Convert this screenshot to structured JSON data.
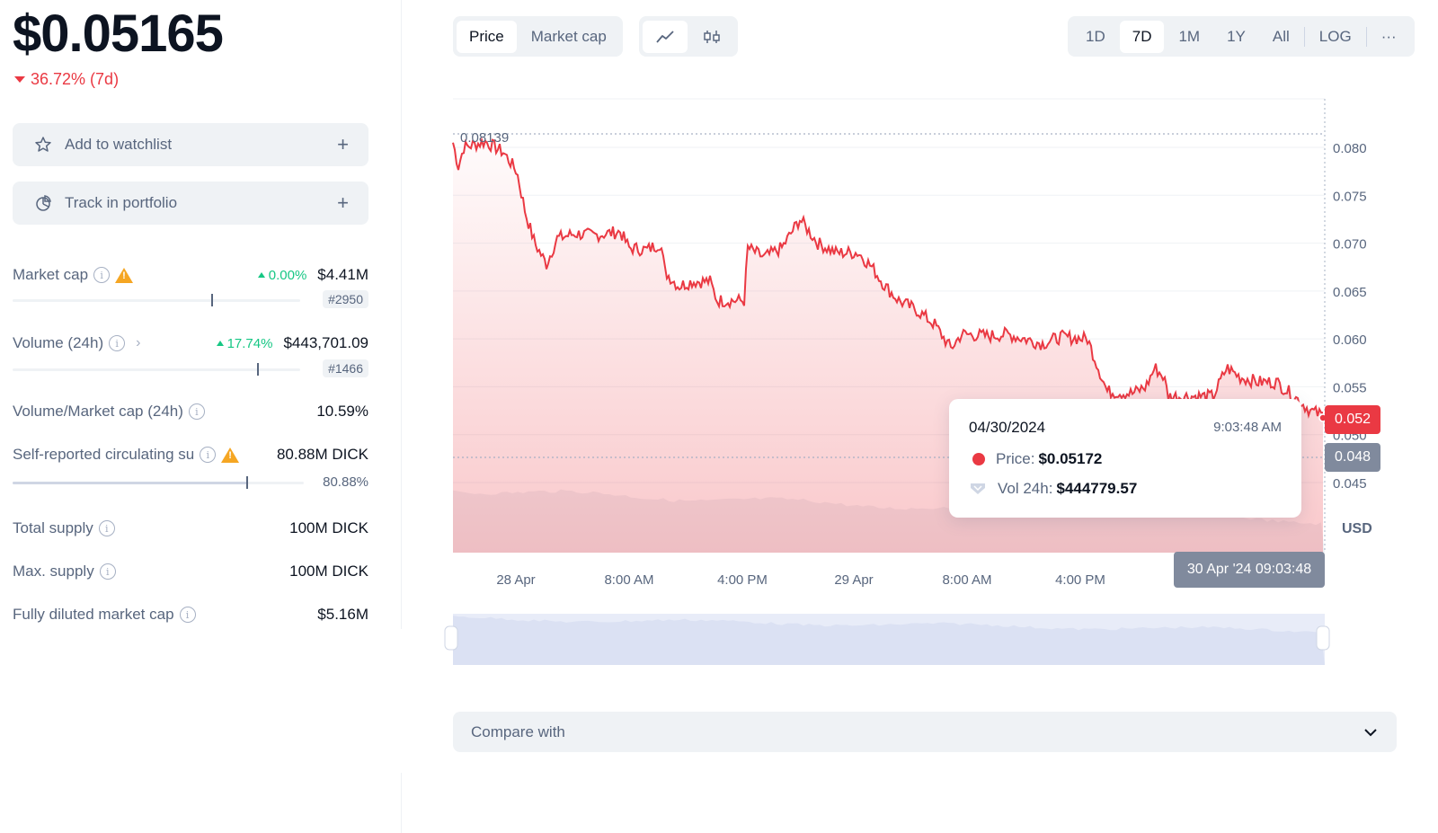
{
  "price": "$0.05165",
  "change_7d": "36.72% (7d)",
  "actions": {
    "watchlist": "Add to watchlist",
    "portfolio": "Track in portfolio",
    "plus": "+"
  },
  "stats": {
    "market_cap": {
      "label": "Market cap",
      "change": "0.00%",
      "value": "$4.41M",
      "rank": "#2950",
      "bar_fraction": 0.69
    },
    "volume": {
      "label": "Volume (24h)",
      "change": "17.74%",
      "value": "$443,701.09",
      "rank": "#1466",
      "bar_fraction": 0.85
    },
    "vol_mcap": {
      "label": "Volume/Market cap (24h)",
      "value": "10.59%"
    },
    "circulating": {
      "label": "Self-reported circulating su",
      "value": "80.88M DICK",
      "percent": "80.88%",
      "bar_fraction": 0.8088
    },
    "total_supply": {
      "label": "Total supply",
      "value": "100M DICK"
    },
    "max_supply": {
      "label": "Max. supply",
      "value": "100M DICK"
    },
    "fdmc": {
      "label": "Fully diluted market cap",
      "value": "$5.16M"
    }
  },
  "toolbar": {
    "chart_mode": [
      "Price",
      "Market cap"
    ],
    "active_mode": "Price",
    "ranges": [
      "1D",
      "7D",
      "1M",
      "1Y",
      "All",
      "LOG"
    ],
    "active_range": "7D",
    "more": "···"
  },
  "chart": {
    "high_label": "0.08139",
    "y_ticks": [
      "0.080",
      "0.075",
      "0.070",
      "0.065",
      "0.060",
      "0.055",
      "0.050",
      "0.045"
    ],
    "currency": "USD",
    "x_ticks": [
      "28 Apr",
      "8:00 AM",
      "4:00 PM",
      "29 Apr",
      "8:00 AM",
      "4:00 PM"
    ],
    "current_price_tag": "0.052",
    "low_price_tag": "0.048",
    "hover_time_tag": "30 Apr '24 09:03:48",
    "line_color": "#ea3943"
  },
  "tooltip": {
    "date": "04/30/2024",
    "time": "9:03:48 AM",
    "price_label": "Price:",
    "price_value": "$0.05172",
    "vol_label": "Vol 24h:",
    "vol_value": "$444779.57"
  },
  "compare": {
    "label": "Compare with"
  }
}
